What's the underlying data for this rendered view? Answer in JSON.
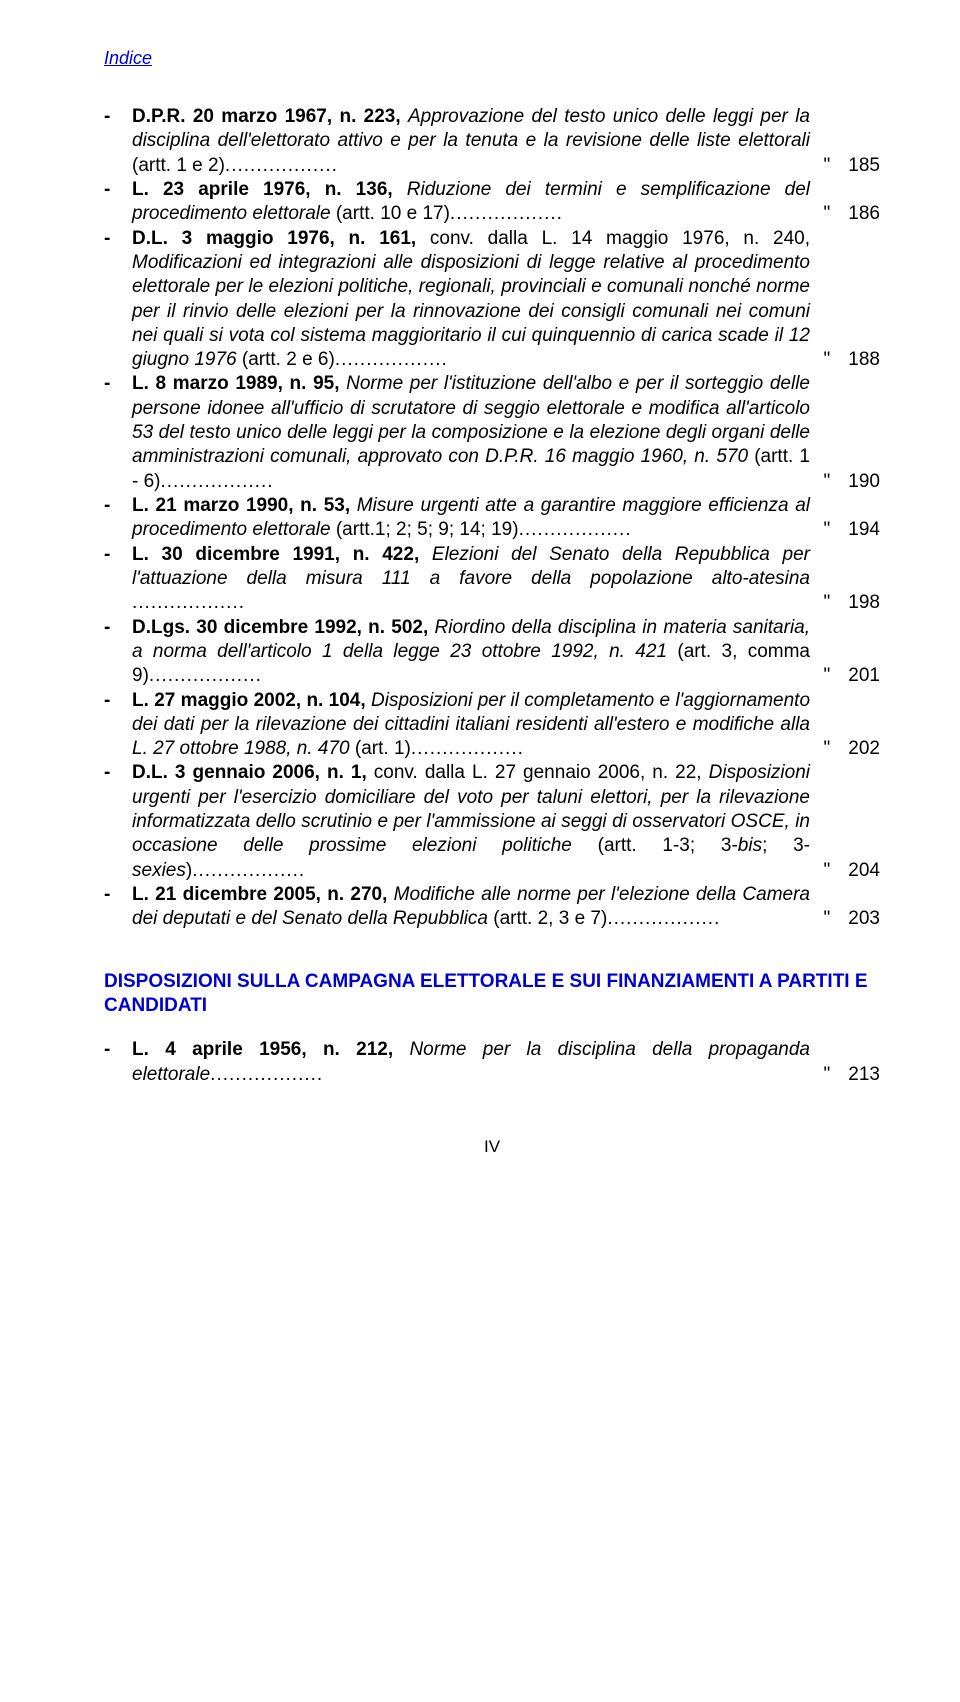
{
  "header": "Indice",
  "text_color": "#000000",
  "accent_color": "#0000cc",
  "background_color": "#ffffff",
  "font_family": "Arial",
  "base_font_size_pt": 14,
  "entries": [
    {
      "law": "D.P.R. 20 marzo 1967, n. 223,",
      "desc_italic": "Approvazione del testo unico delle leggi per la disciplina dell'elettorato attivo e per la tenuta e la revisione delle liste elettorali",
      "suffix": " (artt. 1 e 2)",
      "page": "185"
    },
    {
      "law": "L. 23 aprile 1976, n. 136,",
      "desc_italic": "Riduzione dei termini e semplificazione del procedimento elettorale",
      "suffix": " (artt. 10 e 17)",
      "page": "186"
    },
    {
      "law": "D.L. 3 maggio 1976, n. 161,",
      "mid": " conv. dalla L. 14 maggio 1976, n. 240, ",
      "desc_italic": "Modificazioni ed integrazioni alle disposizioni di legge relative al procedimento elettorale per le elezioni politiche, regionali, provinciali e comunali nonché norme per il rinvio delle elezioni per la rinnovazione dei consigli comunali nei comuni nei quali si vota col sistema maggioritario il cui quinquennio di carica scade il 12 giugno 1976",
      "suffix": " (artt. 2 e 6)",
      "page": "188"
    },
    {
      "law": "L. 8 marzo 1989, n. 95,",
      "desc_italic": "Norme per l'istituzione dell'albo e per il sorteggio delle persone idonee all'ufficio di scrutatore di seggio elettorale e modifica all'articolo 53 del testo unico delle leggi per la composizione e la elezione degli organi delle amministrazioni comunali, approvato con D.P.R. 16 maggio 1960, n. 570",
      "suffix": " (artt. 1 - 6)",
      "page": "190"
    },
    {
      "law": "L. 21 marzo 1990, n. 53,",
      "desc_italic": "Misure urgenti atte a garantire maggiore efficienza al procedimento elettorale",
      "suffix": " (artt.1; 2; 5; 9; 14; 19)",
      "page": "194"
    },
    {
      "law": "L. 30 dicembre 1991, n. 422,",
      "desc_italic": "Elezioni del Senato della Repubblica per l'attuazione della misura 111 a favore della popolazione alto-atesina",
      "suffix": " ",
      "page": "198"
    },
    {
      "law": "D.Lgs. 30 dicembre 1992, n. 502,",
      "desc_italic": "Riordino della disciplina in materia sanitaria, a norma dell'articolo 1 della legge 23 ottobre 1992, n. 421",
      "suffix": " (art. 3, comma 9)",
      "page": "201"
    },
    {
      "law": "L. 27 maggio 2002, n. 104,",
      "desc_italic": "Disposizioni per il completamento e l'aggiornamento dei dati per la rilevazione dei cittadini italiani residenti all'estero e modifiche alla L. 27 ottobre 1988, n. 470",
      "suffix": " (art. 1)",
      "page": "202"
    },
    {
      "law": "D.L. 3 gennaio 2006, n. 1,",
      "mid": " conv. dalla L. 27 gennaio 2006, n. 22, ",
      "desc_italic": "Disposizioni urgenti per l'esercizio domiciliare del voto per taluni elettori, per la rilevazione informatizzata dello scrutinio e per l'ammissione ai seggi di osservatori OSCE, in occasione delle prossime elezioni politiche",
      "suffix": " (artt. 1-3; 3-",
      "suffix_italic": "bis",
      "suffix2": "; 3-",
      "suffix2_italic": "sexies",
      "suffix3": ")",
      "page": "204"
    },
    {
      "law": "L. 21 dicembre 2005, n. 270,",
      "desc_italic": "Modifiche alle norme per l'elezione della Camera dei deputati e del Senato della Repubblica",
      "suffix": " (artt. 2, 3 e 7)",
      "page": "203"
    }
  ],
  "section_title": "DISPOSIZIONI SULLA CAMPAGNA ELETTORALE E SUI FINANZIAMENTI A PARTITI E CANDIDATI",
  "section_entries": [
    {
      "law": "L. 4 aprile 1956, n. 212,",
      "desc_italic": "Norme per la disciplina della propaganda elettorale",
      "suffix": "",
      "page": "213"
    }
  ],
  "footer": "IV",
  "dash": "-",
  "quote_mark": "\""
}
